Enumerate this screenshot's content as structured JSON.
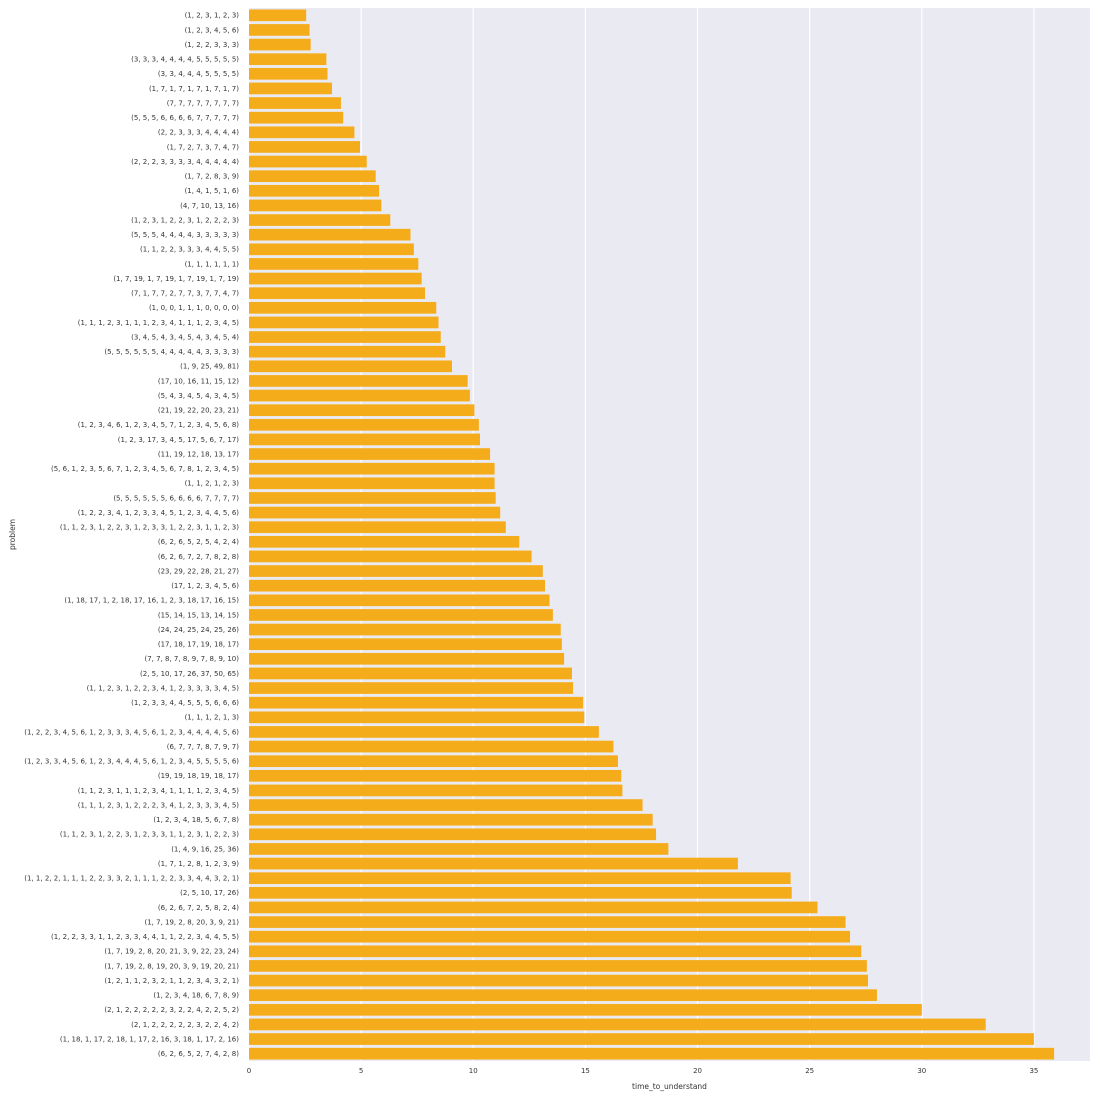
{
  "chart_data": {
    "type": "bar",
    "orientation": "horizontal",
    "xlabel": "time_to_understand",
    "ylabel": "problem",
    "xlim": [
      0,
      37.5
    ],
    "xticks": [
      0,
      5,
      10,
      15,
      20,
      25,
      30,
      35
    ],
    "grid": true,
    "bar_color": "#f5ac1b",
    "background_color": "#eaeaf2",
    "categories": [
      "(1, 2, 3, 1, 2, 3)",
      "(1, 2, 3, 4, 5, 6)",
      "(1, 2, 2, 3, 3, 3)",
      "(3, 3, 3, 4, 4, 4, 4, 5, 5, 5, 5, 5)",
      "(3, 3, 4, 4, 4, 5, 5, 5, 5)",
      "(1, 7, 1, 7, 1, 7, 1, 7, 1, 7)",
      "(7, 7, 7, 7, 7, 7, 7, 7)",
      "(5, 5, 5, 6, 6, 6, 6, 7, 7, 7, 7, 7)",
      "(2, 2, 3, 3, 3, 4, 4, 4, 4)",
      "(1, 7, 2, 7, 3, 7, 4, 7)",
      "(2, 2, 2, 3, 3, 3, 3, 4, 4, 4, 4, 4)",
      "(1, 7, 2, 8, 3, 9)",
      "(1, 4, 1, 5, 1, 6)",
      "(4, 7, 10, 13, 16)",
      "(1, 2, 3, 1, 2, 2, 3, 1, 2, 2, 2, 3)",
      "(5, 5, 5, 4, 4, 4, 4, 3, 3, 3, 3, 3)",
      "(1, 1, 2, 2, 3, 3, 3, 4, 4, 5, 5)",
      "(1, 1, 1, 1, 1, 1)",
      "(1, 7, 19, 1, 7, 19, 1, 7, 19, 1, 7, 19)",
      "(7, 1, 7, 7, 2, 7, 7, 3, 7, 7, 4, 7)",
      "(1, 0, 0, 1, 1, 1, 0, 0, 0, 0)",
      "(1, 1, 1, 2, 3, 1, 1, 1, 2, 3, 4, 1, 1, 1, 2, 3, 4, 5)",
      "(3, 4, 5, 4, 3, 4, 5, 4, 3, 4, 5, 4)",
      "(5, 5, 5, 5, 5, 5, 4, 4, 4, 4, 4, 3, 3, 3, 3)",
      "(1, 9, 25, 49, 81)",
      "(17, 10, 16, 11, 15, 12)",
      "(5, 4, 3, 4, 5, 4, 3, 4, 5)",
      "(21, 19, 22, 20, 23, 21)",
      "(1, 2, 3, 4, 6, 1, 2, 3, 4, 5, 7, 1, 2, 3, 4, 5, 6, 8)",
      "(1, 2, 3, 17, 3, 4, 5, 17, 5, 6, 7, 17)",
      "(11, 19, 12, 18, 13, 17)",
      "(5, 6, 1, 2, 3, 5, 6, 7, 1, 2, 3, 4, 5, 6, 7, 8, 1, 2, 3, 4, 5)",
      "(1, 1, 2, 1, 2, 3)",
      "(5, 5, 5, 5, 5, 5, 6, 6, 6, 6, 7, 7, 7, 7)",
      "(1, 2, 2, 3, 4, 1, 2, 3, 3, 4, 5, 1, 2, 3, 4, 4, 5, 6)",
      "(1, 1, 2, 3, 1, 2, 2, 3, 1, 2, 3, 3, 1, 2, 2, 3, 1, 1, 2, 3)",
      "(6, 2, 6, 5, 2, 5, 4, 2, 4)",
      "(6, 2, 6, 7, 2, 7, 8, 2, 8)",
      "(23, 29, 22, 28, 21, 27)",
      "(17, 1, 2, 3, 4, 5, 6)",
      "(1, 18, 17, 1, 2, 18, 17, 16, 1, 2, 3, 18, 17, 16, 15)",
      "(15, 14, 15, 13, 14, 15)",
      "(24, 24, 25, 24, 25, 26)",
      "(17, 18, 17, 19, 18, 17)",
      "(7, 7, 8, 7, 8, 9, 7, 8, 9, 10)",
      "(2, 5, 10, 17, 26, 37, 50, 65)",
      "(1, 1, 2, 3, 1, 2, 2, 3, 4, 1, 2, 3, 3, 3, 3, 4, 5)",
      "(1, 2, 3, 3, 4, 4, 5, 5, 5, 6, 6, 6)",
      "(1, 1, 1, 2, 1, 3)",
      "(1, 2, 2, 3, 4, 5, 6, 1, 2, 3, 3, 3, 4, 5, 6, 1, 2, 3, 4, 4, 4, 4, 5, 6)",
      "(6, 7, 7, 7, 8, 7, 9, 7)",
      "(1, 2, 3, 3, 4, 5, 6, 1, 2, 3, 4, 4, 4, 5, 6, 1, 2, 3, 4, 5, 5, 5, 5, 6)",
      "(19, 19, 18, 19, 18, 17)",
      "(1, 1, 2, 3, 1, 1, 1, 2, 3, 4, 1, 1, 1, 1, 2, 3, 4, 5)",
      "(1, 1, 1, 2, 3, 1, 2, 2, 2, 3, 4, 1, 2, 3, 3, 3, 4, 5)",
      "(1, 2, 3, 4, 18, 5, 6, 7, 8)",
      "(1, 1, 2, 3, 1, 2, 2, 3, 1, 2, 3, 3, 1, 1, 2, 3, 1, 2, 2, 3)",
      "(1, 4, 9, 16, 25, 36)",
      "(1, 7, 1, 2, 8, 1, 2, 3, 9)",
      "(1, 1, 2, 2, 1, 1, 1, 2, 2, 3, 3, 2, 1, 1, 1, 2, 2, 3, 3, 4, 4, 3, 2, 1)",
      "(2, 5, 10, 17, 26)",
      "(6, 2, 6, 7, 2, 5, 8, 2, 4)",
      "(1, 7, 19, 2, 8, 20, 3, 9, 21)",
      "(1, 2, 2, 3, 3, 1, 1, 2, 3, 3, 4, 4, 1, 1, 2, 2, 3, 4, 4, 5, 5)",
      "(1, 7, 19, 2, 8, 20, 21, 3, 9, 22, 23, 24)",
      "(1, 7, 19, 2, 8, 19, 20, 3, 9, 19, 20, 21)",
      "(1, 2, 1, 1, 2, 3, 2, 1, 1, 2, 3, 4, 3, 2, 1)",
      "(1, 2, 3, 4, 18, 6, 7, 8, 9)",
      "(2, 1, 2, 2, 2, 2, 2, 3, 2, 2, 4, 2, 2, 5, 2)",
      "(2, 1, 2, 2, 2, 2, 2, 3, 2, 2, 4, 2)",
      "(1, 18, 1, 17, 2, 18, 1, 17, 2, 16, 3, 18, 1, 17, 2, 16)",
      "(6, 2, 6, 5, 2, 7, 4, 2, 8)"
    ],
    "values": [
      2.55,
      2.7,
      2.75,
      3.45,
      3.5,
      3.7,
      4.1,
      4.2,
      4.7,
      4.95,
      5.25,
      5.65,
      5.8,
      5.9,
      6.3,
      7.2,
      7.35,
      7.55,
      7.7,
      7.85,
      8.35,
      8.45,
      8.55,
      8.75,
      9.05,
      9.75,
      9.85,
      10.05,
      10.25,
      10.3,
      10.75,
      10.95,
      10.95,
      11.0,
      11.2,
      11.45,
      12.05,
      12.6,
      13.1,
      13.2,
      13.4,
      13.55,
      13.9,
      13.95,
      14.05,
      14.4,
      14.45,
      14.9,
      14.95,
      15.6,
      16.25,
      16.45,
      16.6,
      16.65,
      17.55,
      18.0,
      18.15,
      18.7,
      21.8,
      24.15,
      24.2,
      25.35,
      26.6,
      26.8,
      27.3,
      27.55,
      27.6,
      28.0,
      30.0,
      32.85,
      35.0,
      35.9
    ]
  }
}
